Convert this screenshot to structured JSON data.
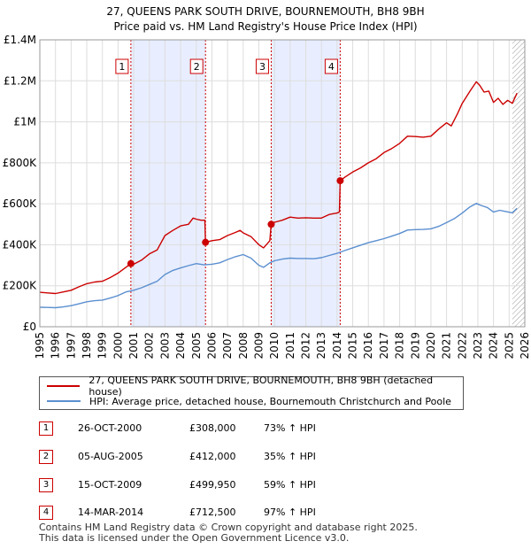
{
  "chart_data": {
    "type": "line",
    "title": "27, QUEENS PARK SOUTH DRIVE, BOURNEMOUTH, BH8 9BH",
    "subtitle": "Price paid vs. HM Land Registry's House Price Index (HPI)",
    "xlabel": "",
    "ylabel": "",
    "xlim": [
      1995,
      2026
    ],
    "ylim": [
      0,
      1400000
    ],
    "y_ticks": [
      {
        "value": 0,
        "label": "£0"
      },
      {
        "value": 200000,
        "label": "£200K"
      },
      {
        "value": 400000,
        "label": "£400K"
      },
      {
        "value": 600000,
        "label": "£600K"
      },
      {
        "value": 800000,
        "label": "£800K"
      },
      {
        "value": 1000000,
        "label": "£1M"
      },
      {
        "value": 1200000,
        "label": "£1.2M"
      },
      {
        "value": 1400000,
        "label": "£1.4M"
      }
    ],
    "x_ticks": [
      "1995",
      "1996",
      "1997",
      "1998",
      "1999",
      "2000",
      "2001",
      "2002",
      "2003",
      "2004",
      "2005",
      "2006",
      "2007",
      "2008",
      "2009",
      "2010",
      "2011",
      "2012",
      "2013",
      "2014",
      "2015",
      "2016",
      "2017",
      "2018",
      "2019",
      "2020",
      "2021",
      "2022",
      "2023",
      "2024",
      "2025",
      "2026"
    ],
    "grid": true,
    "shaded_ranges": [
      [
        2000.82,
        2005.59
      ],
      [
        2009.79,
        2014.2
      ]
    ],
    "hatched_from": 2025.2,
    "sale_markers": [
      {
        "label": "1",
        "x": 2000.82,
        "y": 308000
      },
      {
        "label": "2",
        "x": 2005.59,
        "y": 412000
      },
      {
        "label": "3",
        "x": 2009.79,
        "y": 499950
      },
      {
        "label": "4",
        "x": 2014.2,
        "y": 712500
      }
    ],
    "series": [
      {
        "name": "27, QUEENS PARK SOUTH DRIVE, BOURNEMOUTH, BH8 9BH (detached house)",
        "color": "#cc0000",
        "points": [
          [
            1995.0,
            168000
          ],
          [
            1995.5,
            165000
          ],
          [
            1996.0,
            162000
          ],
          [
            1996.5,
            170000
          ],
          [
            1997.0,
            178000
          ],
          [
            1997.5,
            195000
          ],
          [
            1998.0,
            210000
          ],
          [
            1998.5,
            218000
          ],
          [
            1999.0,
            222000
          ],
          [
            1999.5,
            240000
          ],
          [
            2000.0,
            262000
          ],
          [
            2000.5,
            290000
          ],
          [
            2000.82,
            308000
          ],
          [
            2001.0,
            305000
          ],
          [
            2001.5,
            325000
          ],
          [
            2002.0,
            355000
          ],
          [
            2002.5,
            375000
          ],
          [
            2003.0,
            445000
          ],
          [
            2003.5,
            470000
          ],
          [
            2004.0,
            492000
          ],
          [
            2004.5,
            500000
          ],
          [
            2004.8,
            530000
          ],
          [
            2005.0,
            525000
          ],
          [
            2005.3,
            520000
          ],
          [
            2005.55,
            520000
          ],
          [
            2005.59,
            412000
          ],
          [
            2006.0,
            420000
          ],
          [
            2006.5,
            425000
          ],
          [
            2007.0,
            445000
          ],
          [
            2007.5,
            460000
          ],
          [
            2007.8,
            470000
          ],
          [
            2008.0,
            458000
          ],
          [
            2008.5,
            440000
          ],
          [
            2009.0,
            400000
          ],
          [
            2009.3,
            385000
          ],
          [
            2009.7,
            420000
          ],
          [
            2009.79,
            499950
          ],
          [
            2010.0,
            510000
          ],
          [
            2010.5,
            520000
          ],
          [
            2011.0,
            535000
          ],
          [
            2011.5,
            530000
          ],
          [
            2012.0,
            532000
          ],
          [
            2012.5,
            530000
          ],
          [
            2013.0,
            530000
          ],
          [
            2013.5,
            548000
          ],
          [
            2014.0,
            555000
          ],
          [
            2014.15,
            560000
          ],
          [
            2014.2,
            712500
          ],
          [
            2014.5,
            730000
          ],
          [
            2015.0,
            755000
          ],
          [
            2015.5,
            775000
          ],
          [
            2016.0,
            800000
          ],
          [
            2016.5,
            820000
          ],
          [
            2017.0,
            850000
          ],
          [
            2017.5,
            870000
          ],
          [
            2018.0,
            895000
          ],
          [
            2018.5,
            930000
          ],
          [
            2019.0,
            928000
          ],
          [
            2019.5,
            925000
          ],
          [
            2020.0,
            930000
          ],
          [
            2020.5,
            965000
          ],
          [
            2021.0,
            995000
          ],
          [
            2021.3,
            980000
          ],
          [
            2021.7,
            1040000
          ],
          [
            2022.0,
            1090000
          ],
          [
            2022.5,
            1150000
          ],
          [
            2022.9,
            1195000
          ],
          [
            2023.1,
            1180000
          ],
          [
            2023.4,
            1145000
          ],
          [
            2023.7,
            1150000
          ],
          [
            2024.0,
            1095000
          ],
          [
            2024.3,
            1115000
          ],
          [
            2024.6,
            1085000
          ],
          [
            2024.9,
            1105000
          ],
          [
            2025.2,
            1090000
          ],
          [
            2025.5,
            1140000
          ]
        ]
      },
      {
        "name": "HPI: Average price, detached house, Bournemouth Christchurch and Poole",
        "color": "#5b8fd0",
        "points": [
          [
            1995.0,
            95000
          ],
          [
            1995.5,
            94000
          ],
          [
            1996.0,
            93000
          ],
          [
            1996.5,
            97000
          ],
          [
            1997.0,
            103000
          ],
          [
            1997.5,
            112000
          ],
          [
            1998.0,
            122000
          ],
          [
            1998.5,
            127000
          ],
          [
            1999.0,
            130000
          ],
          [
            1999.5,
            140000
          ],
          [
            2000.0,
            152000
          ],
          [
            2000.5,
            170000
          ],
          [
            2001.0,
            178000
          ],
          [
            2001.5,
            190000
          ],
          [
            2002.0,
            206000
          ],
          [
            2002.5,
            222000
          ],
          [
            2003.0,
            255000
          ],
          [
            2003.5,
            275000
          ],
          [
            2004.0,
            287000
          ],
          [
            2004.5,
            298000
          ],
          [
            2005.0,
            308000
          ],
          [
            2005.5,
            302000
          ],
          [
            2006.0,
            305000
          ],
          [
            2006.5,
            312000
          ],
          [
            2007.0,
            328000
          ],
          [
            2007.5,
            342000
          ],
          [
            2008.0,
            352000
          ],
          [
            2008.5,
            335000
          ],
          [
            2009.0,
            300000
          ],
          [
            2009.3,
            290000
          ],
          [
            2009.7,
            312000
          ],
          [
            2010.0,
            322000
          ],
          [
            2010.5,
            330000
          ],
          [
            2011.0,
            335000
          ],
          [
            2011.5,
            333000
          ],
          [
            2012.0,
            333000
          ],
          [
            2012.5,
            332000
          ],
          [
            2013.0,
            337000
          ],
          [
            2013.5,
            348000
          ],
          [
            2014.0,
            358000
          ],
          [
            2014.5,
            372000
          ],
          [
            2015.0,
            385000
          ],
          [
            2015.5,
            398000
          ],
          [
            2016.0,
            410000
          ],
          [
            2016.5,
            420000
          ],
          [
            2017.0,
            430000
          ],
          [
            2017.5,
            442000
          ],
          [
            2018.0,
            455000
          ],
          [
            2018.5,
            472000
          ],
          [
            2019.0,
            474000
          ],
          [
            2019.5,
            475000
          ],
          [
            2020.0,
            478000
          ],
          [
            2020.5,
            490000
          ],
          [
            2021.0,
            508000
          ],
          [
            2021.5,
            528000
          ],
          [
            2022.0,
            555000
          ],
          [
            2022.5,
            585000
          ],
          [
            2022.9,
            602000
          ],
          [
            2023.2,
            592000
          ],
          [
            2023.6,
            582000
          ],
          [
            2024.0,
            560000
          ],
          [
            2024.4,
            568000
          ],
          [
            2024.8,
            562000
          ],
          [
            2025.2,
            556000
          ],
          [
            2025.5,
            578000
          ]
        ]
      }
    ]
  },
  "legend": {
    "property_label": "27, QUEENS PARK SOUTH DRIVE, BOURNEMOUTH, BH8 9BH (detached house)",
    "hpi_label": "HPI: Average price, detached house, Bournemouth Christchurch and Poole"
  },
  "sales": [
    {
      "num": "1",
      "date": "26-OCT-2000",
      "price": "£308,000",
      "hpi": "73% ↑ HPI"
    },
    {
      "num": "2",
      "date": "05-AUG-2005",
      "price": "£412,000",
      "hpi": "35% ↑ HPI"
    },
    {
      "num": "3",
      "date": "15-OCT-2009",
      "price": "£499,950",
      "hpi": "59% ↑ HPI"
    },
    {
      "num": "4",
      "date": "14-MAR-2014",
      "price": "£712,500",
      "hpi": "97% ↑ HPI"
    }
  ],
  "footer": {
    "line1": "Contains HM Land Registry data © Crown copyright and database right 2025.",
    "line2": "This data is licensed under the Open Government Licence v3.0."
  },
  "colors": {
    "property": "#cc0000",
    "hpi": "#5b8fd0",
    "shade": "#e8eeff",
    "grid": "#dddddd"
  }
}
